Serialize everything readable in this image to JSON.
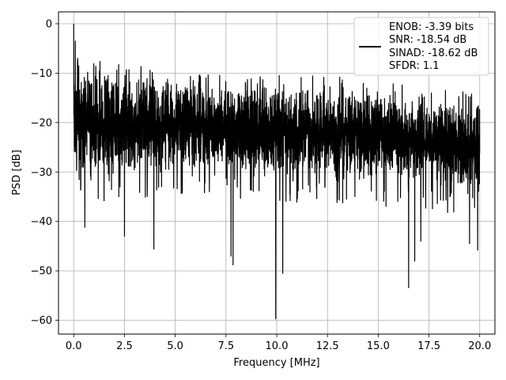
{
  "chart_data": {
    "type": "line",
    "title": "",
    "xlabel": "Frequency [MHz]",
    "ylabel": "PSD [dB]",
    "xlim": [
      -0.75,
      20.75
    ],
    "ylim": [
      -62.8,
      2.4
    ],
    "xticks": [
      0.0,
      2.5,
      5.0,
      7.5,
      10.0,
      12.5,
      15.0,
      17.5,
      20.0
    ],
    "xtick_labels": [
      "0.0",
      "2.5",
      "5.0",
      "7.5",
      "10.0",
      "12.5",
      "15.0",
      "17.5",
      "20.0"
    ],
    "yticks": [
      0,
      -10,
      -20,
      -30,
      -40,
      -50,
      -60
    ],
    "ytick_labels": [
      "0",
      "−10",
      "−20",
      "−30",
      "−40",
      "−50",
      "−60"
    ],
    "grid": true,
    "legend": {
      "placement": "upper-right",
      "entries": [
        "ENOB: -3.39 bits",
        "SNR: -18.54 dB",
        "SINAD: -18.62 dB",
        "SFDR: 1.1"
      ]
    },
    "series": [
      {
        "color": "#000000",
        "x_range": [
          0.0,
          20.0
        ],
        "samples": 3000,
        "envelope_upper": [
          [
            0.0,
            -9
          ],
          [
            0.5,
            -10
          ],
          [
            2.0,
            -11
          ],
          [
            5.0,
            -12
          ],
          [
            10.0,
            -13
          ],
          [
            15.0,
            -14
          ],
          [
            17.0,
            -16
          ],
          [
            20.0,
            -17
          ]
        ],
        "envelope_lower": [
          [
            0.0,
            -30
          ],
          [
            2.0,
            -30
          ],
          [
            5.0,
            -29
          ],
          [
            10.0,
            -30
          ],
          [
            15.0,
            -31
          ],
          [
            20.0,
            -33
          ]
        ],
        "peaks": [
          [
            0.0,
            0.0
          ],
          [
            0.08,
            -3.5
          ],
          [
            0.2,
            -7
          ],
          [
            0.35,
            -9
          ]
        ],
        "notable_dips": [
          [
            0.15,
            -28
          ],
          [
            0.35,
            -33.5
          ],
          [
            0.55,
            -41.2
          ],
          [
            2.5,
            -43
          ],
          [
            3.95,
            -45.6
          ],
          [
            7.75,
            -47
          ],
          [
            7.85,
            -48.8
          ],
          [
            9.95,
            -59.7
          ],
          [
            10.3,
            -50.5
          ],
          [
            16.5,
            -53.4
          ],
          [
            16.8,
            -48
          ],
          [
            17.1,
            -44
          ],
          [
            19.5,
            -44.5
          ],
          [
            19.9,
            -45.8
          ]
        ]
      }
    ]
  }
}
